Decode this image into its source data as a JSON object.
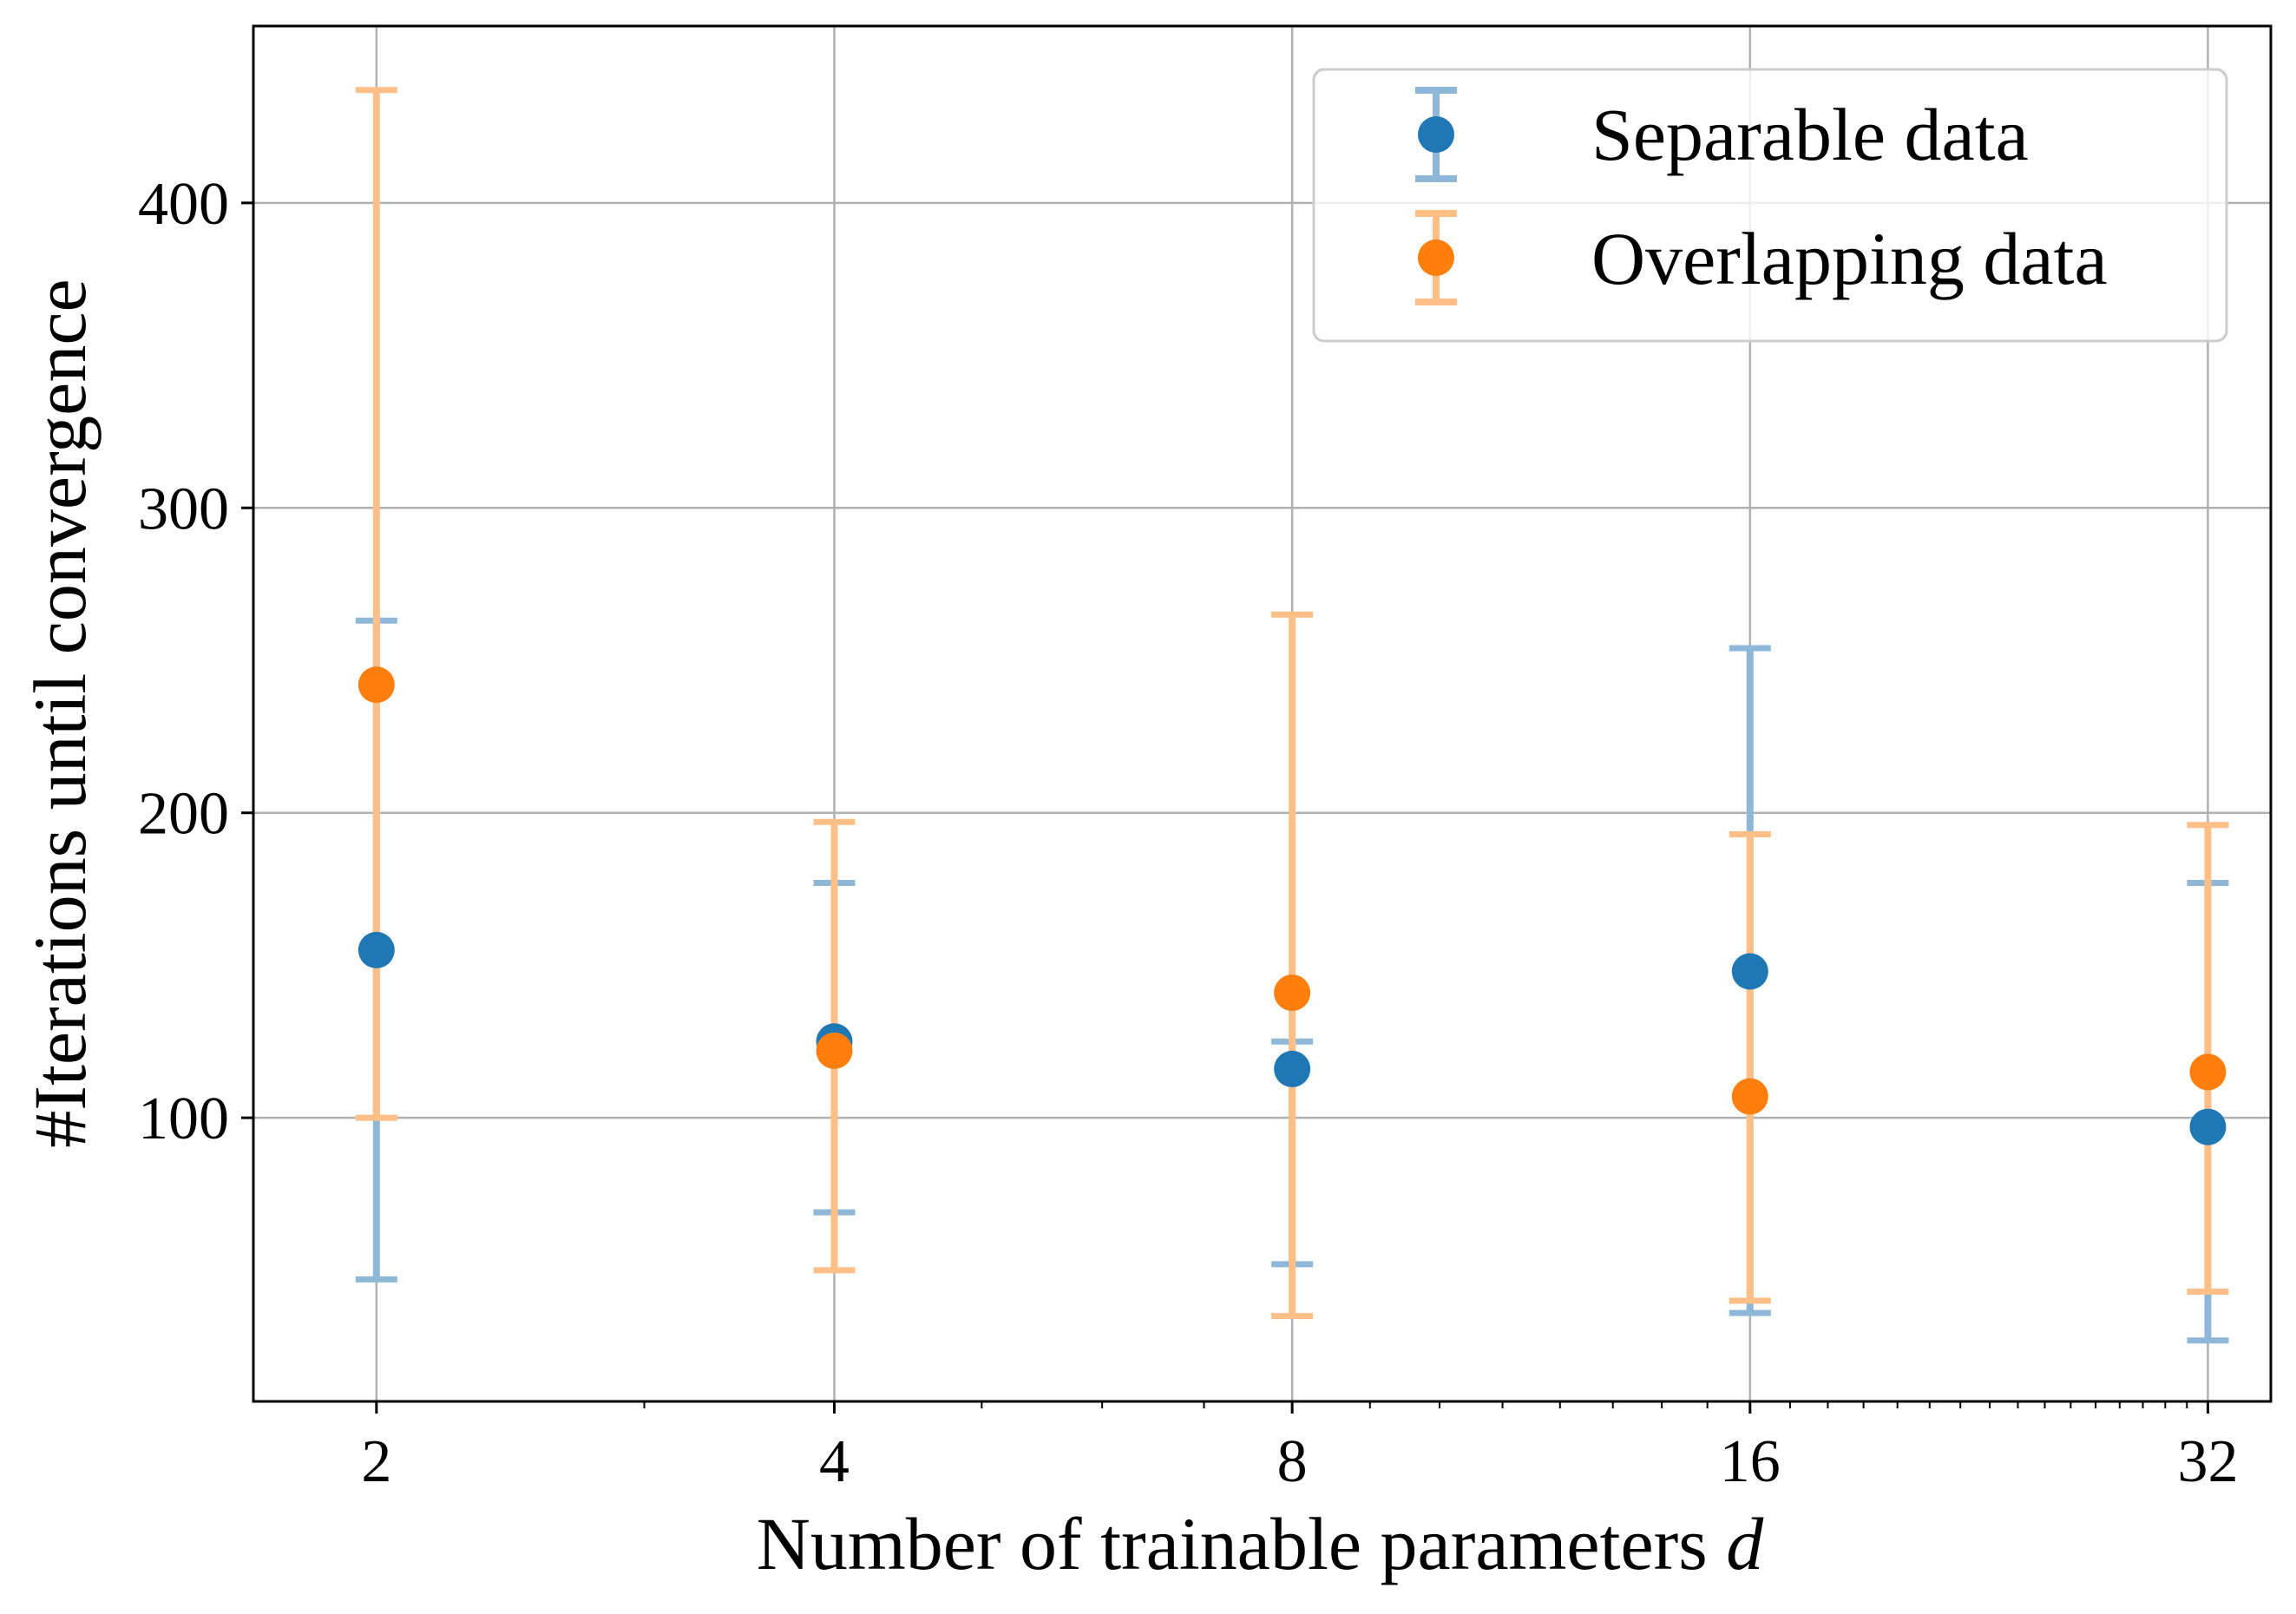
{
  "chart_data": {
    "type": "scatter",
    "xlabel": "Number of trainable parameters",
    "xlabel_var": "d",
    "ylabel": "#Iterations until convergence",
    "x_scale": "log2",
    "x": [
      2,
      4,
      8,
      16,
      32
    ],
    "x_tick_labels": [
      "2",
      "4",
      "8",
      "16",
      "32"
    ],
    "xlim": [
      1.66,
      35.2
    ],
    "ylim": [
      7,
      458
    ],
    "y_ticks": [
      100,
      200,
      300,
      400
    ],
    "y_tick_labels": [
      "100",
      "200",
      "300",
      "400"
    ],
    "grid": true,
    "legend_position": "top-right",
    "series": [
      {
        "name": "Separable data",
        "color": "#1f77b4",
        "err_color": "#8fb8d8",
        "y": [
          155,
          125,
          116,
          148,
          97
        ],
        "err_low": [
          47,
          69,
          52,
          36,
          27
        ],
        "err_high": [
          263,
          177,
          125,
          254,
          177
        ]
      },
      {
        "name": "Overlapping data",
        "color": "#ff7f0e",
        "err_color": "#ffbf86",
        "y": [
          242,
          122,
          141,
          107,
          115
        ],
        "err_low": [
          100,
          50,
          35,
          40,
          43
        ],
        "err_high": [
          437,
          197,
          265,
          193,
          196
        ]
      }
    ]
  }
}
